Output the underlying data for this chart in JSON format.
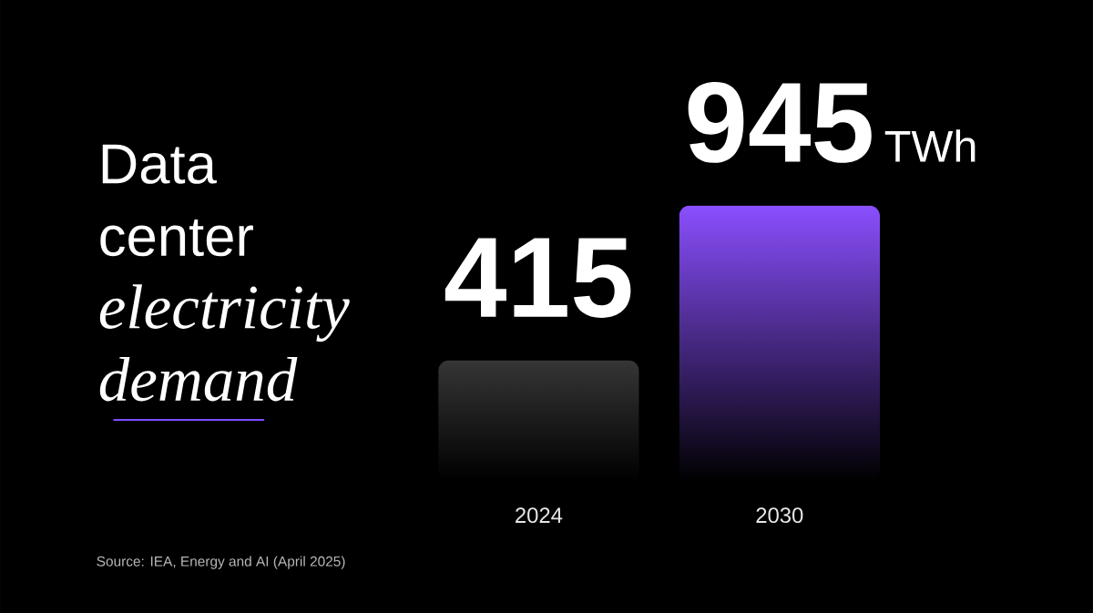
{
  "chart_data": {
    "type": "bar",
    "title": "Data center *electricity demand*",
    "categories": [
      "2024",
      "2030"
    ],
    "values": [
      415,
      945
    ],
    "colors": [
      "#363636",
      "#8a4fff"
    ],
    "ylabel": "TWh",
    "tick_labels": "x",
    "data_labels": true,
    "annotations": [
      "Source: IEA, Energy and AI (April 2025)"
    ]
  }
}
